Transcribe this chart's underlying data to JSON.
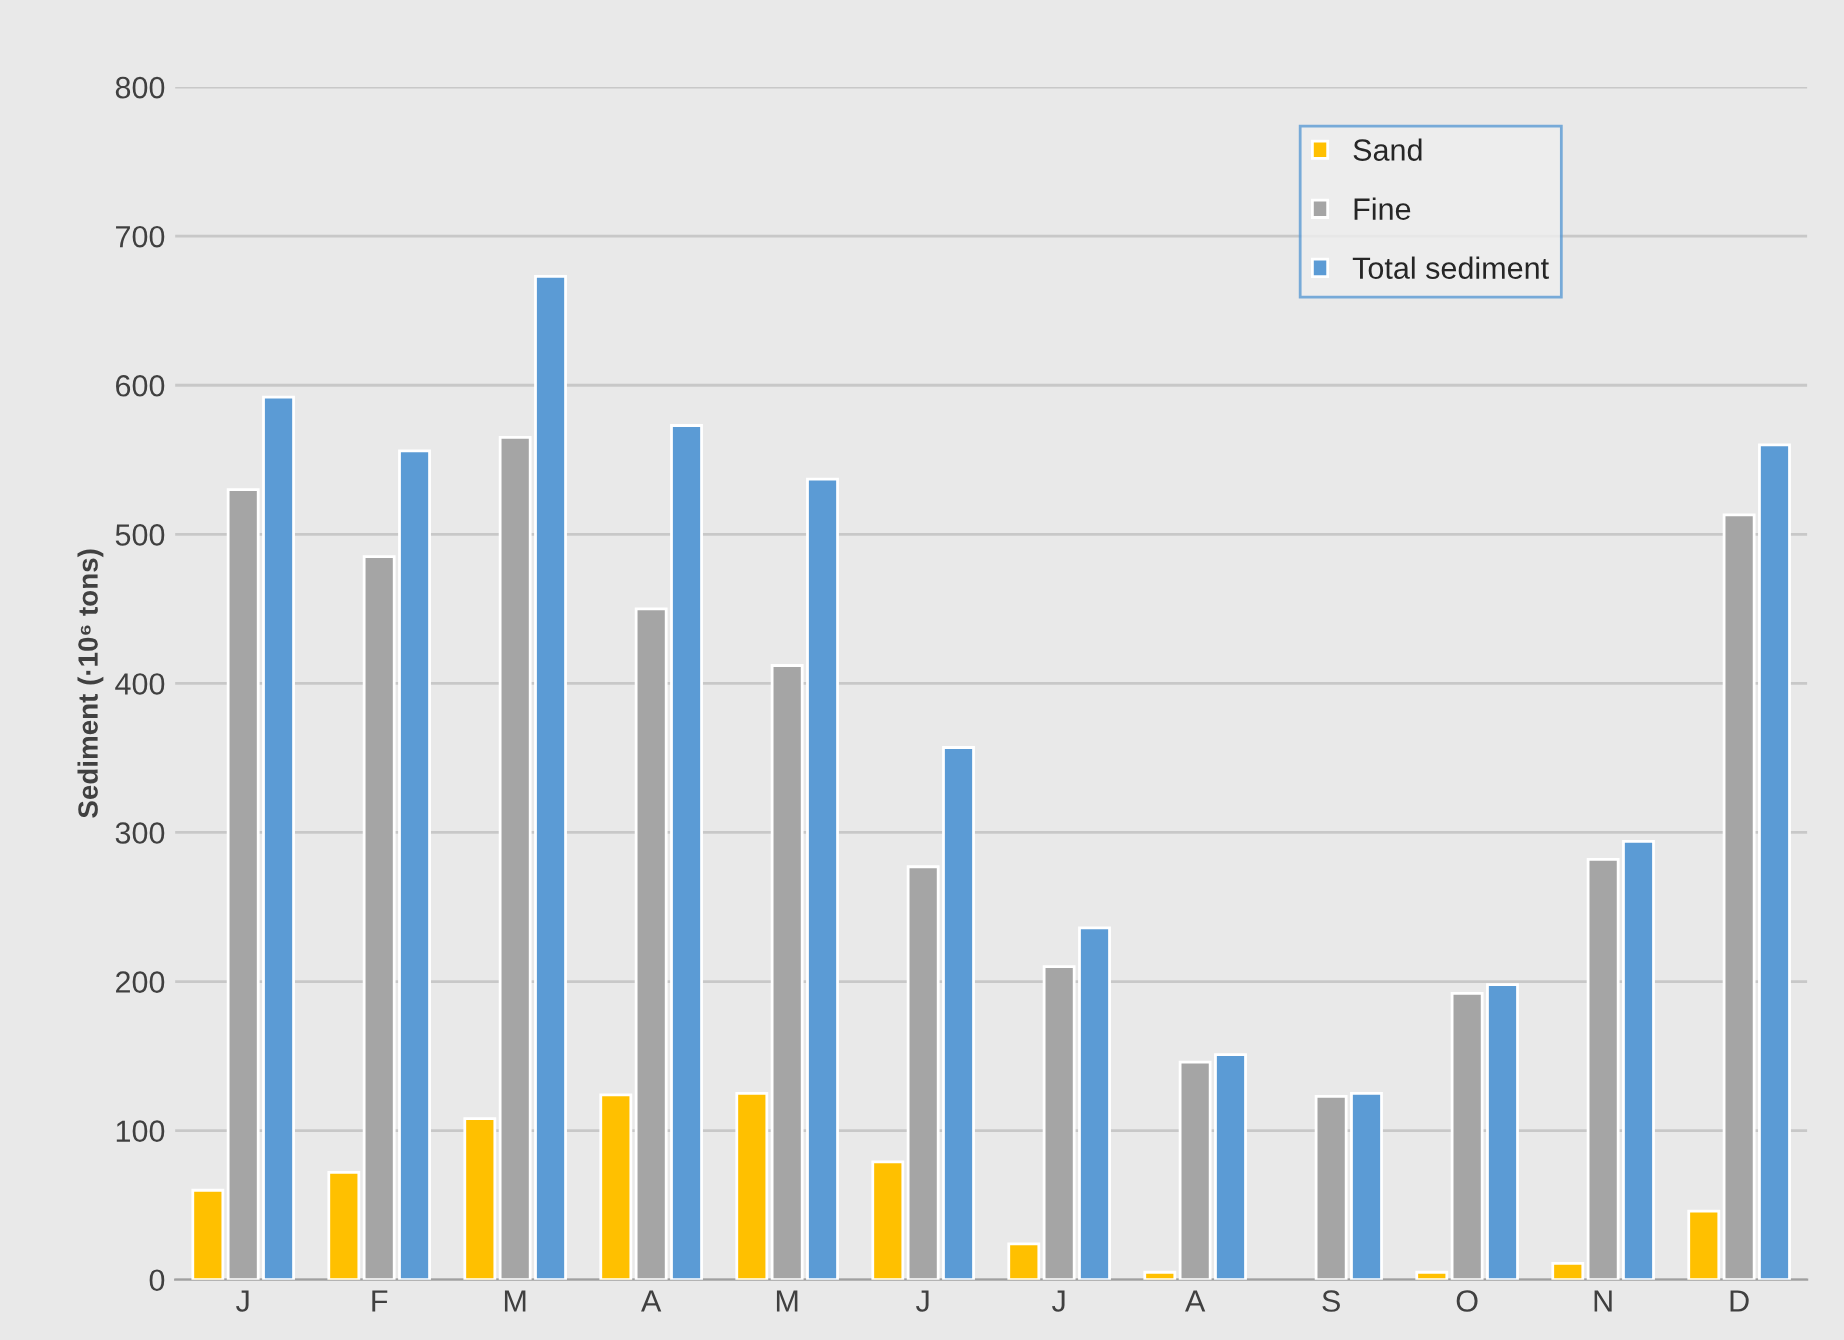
{
  "chart_data": {
    "type": "bar",
    "ylabel": "Sediment (·10⁶ tons)",
    "categories": [
      "J",
      "F",
      "M",
      "A",
      "M",
      "J",
      "J",
      "A",
      "S",
      "O",
      "N",
      "D"
    ],
    "series": [
      {
        "name": "Sand",
        "color": "#ffc000",
        "values": [
          60,
          72,
          108,
          124,
          125,
          79,
          24,
          5,
          null,
          5,
          11,
          46
        ]
      },
      {
        "name": "Fine",
        "color": "#a5a5a5",
        "values": [
          530,
          485,
          565,
          450,
          412,
          277,
          210,
          146,
          123,
          192,
          282,
          513
        ]
      },
      {
        "name": "Total sediment",
        "color": "#5b9bd5",
        "values": [
          592,
          556,
          673,
          573,
          537,
          357,
          236,
          151,
          125,
          198,
          294,
          560
        ]
      }
    ],
    "ylim": [
      0,
      800
    ],
    "yticks": [
      0,
      100,
      200,
      300,
      400,
      500,
      600,
      700,
      800
    ],
    "grid": "y",
    "legend": "top right"
  }
}
